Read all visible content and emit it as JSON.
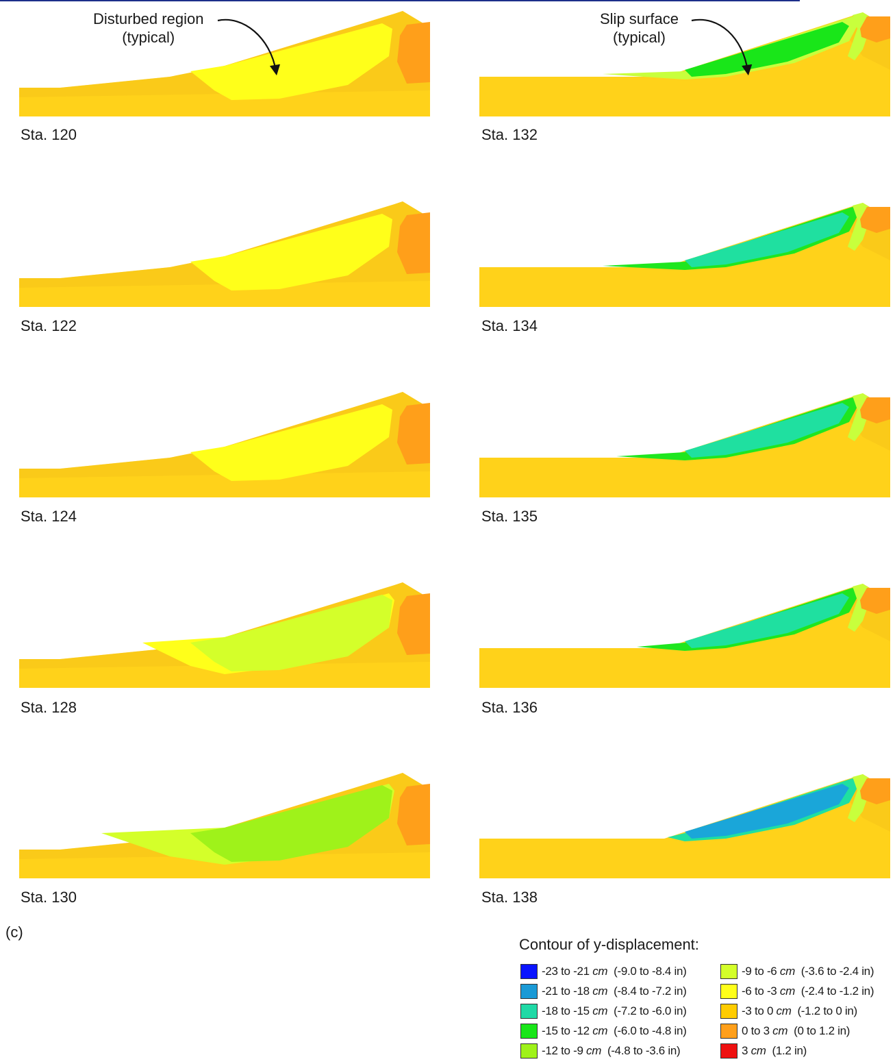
{
  "annotations": {
    "disturbed_region": {
      "line1": "Disturbed region",
      "line2": "(typical)"
    },
    "slip_surface": {
      "line1": "Slip surface",
      "line2": "(typical)"
    }
  },
  "panels": [
    {
      "label": "Sta. 120",
      "side": "left",
      "row": 0,
      "zone_color": "#ffff1a",
      "fringe_color": null,
      "variant": "disturbed"
    },
    {
      "label": "Sta. 132",
      "side": "right",
      "row": 0,
      "zone_color": "#19e619",
      "fringe_color": "#c8ff3c",
      "variant": "slip"
    },
    {
      "label": "Sta. 122",
      "side": "left",
      "row": 1,
      "zone_color": "#ffff1a",
      "fringe_color": null,
      "variant": "disturbed"
    },
    {
      "label": "Sta. 134",
      "side": "right",
      "row": 1,
      "zone_color": "#1fe0a0",
      "fringe_color": "#1fe61f",
      "variant": "slip"
    },
    {
      "label": "Sta. 124",
      "side": "left",
      "row": 2,
      "zone_color": "#ffff1a",
      "fringe_color": null,
      "variant": "disturbed"
    },
    {
      "label": "Sta. 135",
      "side": "right",
      "row": 2,
      "zone_color": "#1fe0a0",
      "fringe_color": "#1fe61f",
      "variant": "slip"
    },
    {
      "label": "Sta. 128",
      "side": "left",
      "row": 3,
      "zone_color": "#d4ff2a",
      "fringe_color": "#ffff1a",
      "variant": "disturbed"
    },
    {
      "label": "Sta. 136",
      "side": "right",
      "row": 3,
      "zone_color": "#1fe0a0",
      "fringe_color": "#1fe61f",
      "variant": "slip"
    },
    {
      "label": "Sta. 130",
      "side": "left",
      "row": 4,
      "zone_color": "#9ff21a",
      "fringe_color": "#d4ff2a",
      "variant": "disturbed"
    },
    {
      "label": "Sta. 138",
      "side": "right",
      "row": 4,
      "zone_color": "#1aa6d9",
      "fringe_color": "#1fe0a0",
      "variant": "slip"
    }
  ],
  "figure_letter": "(c)",
  "legend": {
    "title": "Contour of y-displacement:",
    "items": [
      {
        "range": "-23 to -21",
        "unit": "cm",
        "imperial": "(-9.0 to -8.4 in)",
        "color": "#0a14ff"
      },
      {
        "range": "-21 to -18",
        "unit": "cm",
        "imperial": "(-8.4 to -7.2 in)",
        "color": "#1a9ad6"
      },
      {
        "range": "-18 to -15",
        "unit": "cm",
        "imperial": "(-7.2 to -6.0 in)",
        "color": "#1fd9a6"
      },
      {
        "range": "-15 to -12",
        "unit": "cm",
        "imperial": "(-6.0 to -4.8 in)",
        "color": "#19e619"
      },
      {
        "range": "-12 to -9",
        "unit": "cm",
        "imperial": "(-4.8 to -3.6 in)",
        "color": "#9ff21a"
      },
      {
        "range": "-9 to -6",
        "unit": "cm",
        "imperial": "(-3.6 to -2.4 in)",
        "color": "#d4ff2a"
      },
      {
        "range": "-6 to -3",
        "unit": "cm",
        "imperial": "(-2.4 to -1.2 in)",
        "color": "#ffff1a"
      },
      {
        "range": "-3 to 0",
        "unit": "cm",
        "imperial": "(-1.2 to 0 in)",
        "color": "#ffcc00"
      },
      {
        "range": "0 to 3",
        "unit": "cm",
        "imperial": "(0 to 1.2 in)",
        "color": "#ff9f1a"
      },
      {
        "range": "3",
        "unit": "cm",
        "imperial": "(1.2 in)",
        "color": "#ee1111"
      }
    ]
  },
  "colors": {
    "soil": "#ffd21a",
    "soil_dark": "#f5c21a",
    "rock": "#ff9f1a",
    "crest_fringe": "#c8ff3c"
  }
}
